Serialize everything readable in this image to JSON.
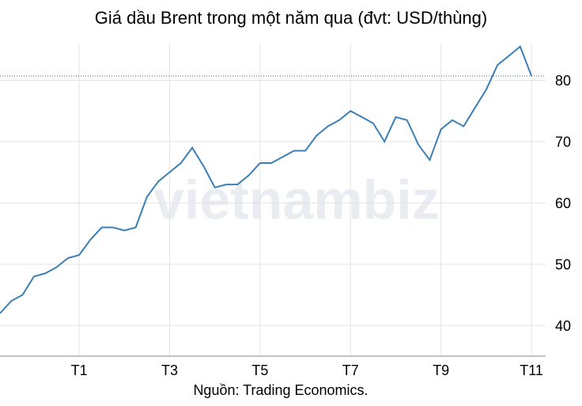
{
  "chart_data": {
    "type": "line",
    "title": "Giá dầu Brent trong một năm qua (đvt: USD/thùng)",
    "source": "Nguồn: Trading Economics.",
    "watermark": "vietnambiz",
    "categories": [
      null,
      null,
      null,
      null,
      null,
      null,
      null,
      "T1",
      null,
      null,
      null,
      null,
      null,
      null,
      null,
      "T3",
      null,
      null,
      null,
      null,
      null,
      null,
      null,
      "T5",
      null,
      null,
      null,
      null,
      null,
      null,
      null,
      "T7",
      null,
      null,
      null,
      null,
      null,
      null,
      null,
      "T9",
      null,
      null,
      null,
      null,
      null,
      null,
      null,
      "T11"
    ],
    "series": [
      {
        "name": "Brent",
        "color": "#3b7fb6",
        "values": [
          42,
          44,
          45,
          48,
          48.5,
          49.5,
          51,
          51.5,
          54,
          56,
          56,
          55.5,
          56,
          61,
          63.5,
          65,
          66.5,
          69,
          66,
          62.5,
          63,
          63,
          64.5,
          66.5,
          66.5,
          67.5,
          68.5,
          68.5,
          71,
          72.5,
          73.5,
          75,
          74,
          73,
          70,
          74,
          73.5,
          69.5,
          67,
          72,
          73.5,
          72.5,
          75.5,
          78.5,
          82.5,
          84,
          85.5,
          80.7
        ]
      }
    ],
    "ylim": [
      35,
      86
    ],
    "yticks": [
      40,
      50,
      60,
      70,
      80
    ],
    "grid": true,
    "y_axis_side": "right",
    "last_value_line": true
  }
}
